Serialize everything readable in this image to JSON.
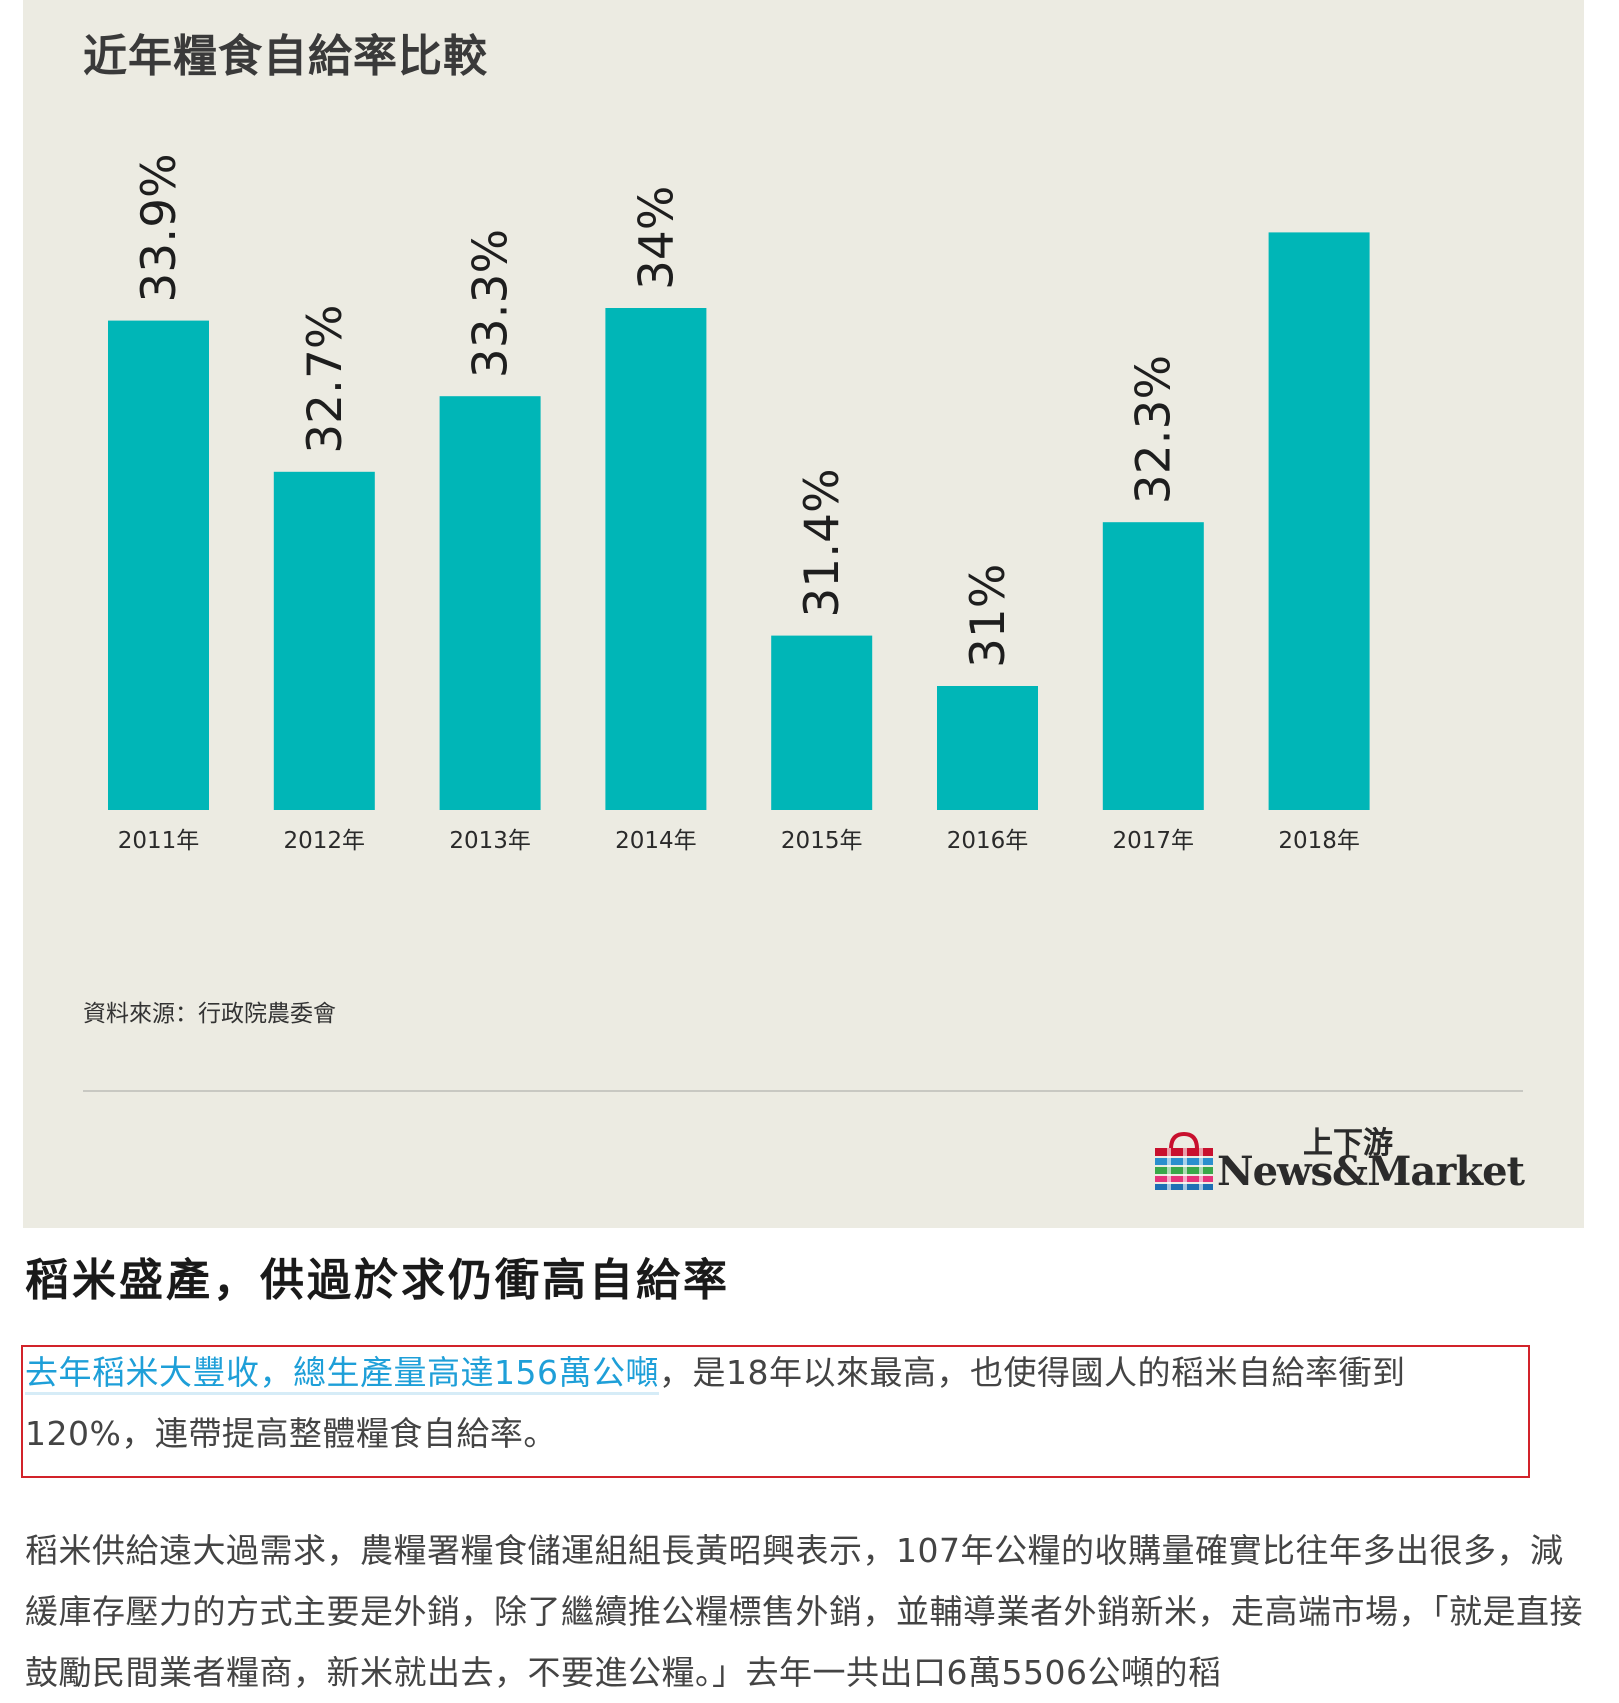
{
  "chart_title": "近年糧食自給率比較",
  "chart_data": {
    "type": "bar",
    "title": "近年糧食自給率比較",
    "categories": [
      "2011年",
      "2012年",
      "2013年",
      "2014年",
      "2015年",
      "2016年",
      "2017年",
      "2018年"
    ],
    "values": [
      33.9,
      32.7,
      33.3,
      34,
      31.4,
      31,
      32.3,
      34.6
    ],
    "value_labels": [
      "33.9%",
      "32.7%",
      "33.3%",
      "34%",
      "31.4%",
      "31%",
      "32.3%",
      ""
    ],
    "unit": "%",
    "xlabel": "",
    "ylabel": "",
    "grid": false,
    "bar_color": "#00b6b7"
  },
  "source_note": "資料來源：行政院農委會",
  "brand": {
    "name_cn": "上下游",
    "name_en": "News&Market"
  },
  "colors": {
    "panel_background": "#ecebe2",
    "bar": "#00b6b7",
    "link": "#1e9fd8",
    "highlight_border": "#d2232a"
  },
  "article": {
    "heading": "稻米盛產，供過於求仍衝高自給率",
    "p1_link": "去年稻米大豐收，總生產量高達156萬公噸",
    "p1_text": "，是18年以來最高，也使得國人的稻米自給率衝到120%，連帶提高整體糧食自給率。",
    "p2_text": "稻米供給遠大過需求，農糧署糧食儲運組組長黃昭興表示，107年公糧的收購量確實比往年多出很多，減緩庫存壓力的方式主要是外銷，除了繼續推公糧標售外銷，並輔導業者外銷新米，走高端市場，「就是直接鼓勵民間業者糧商，新米就出去，不要進公糧。」去年一共出口6萬5506公噸的稻"
  }
}
